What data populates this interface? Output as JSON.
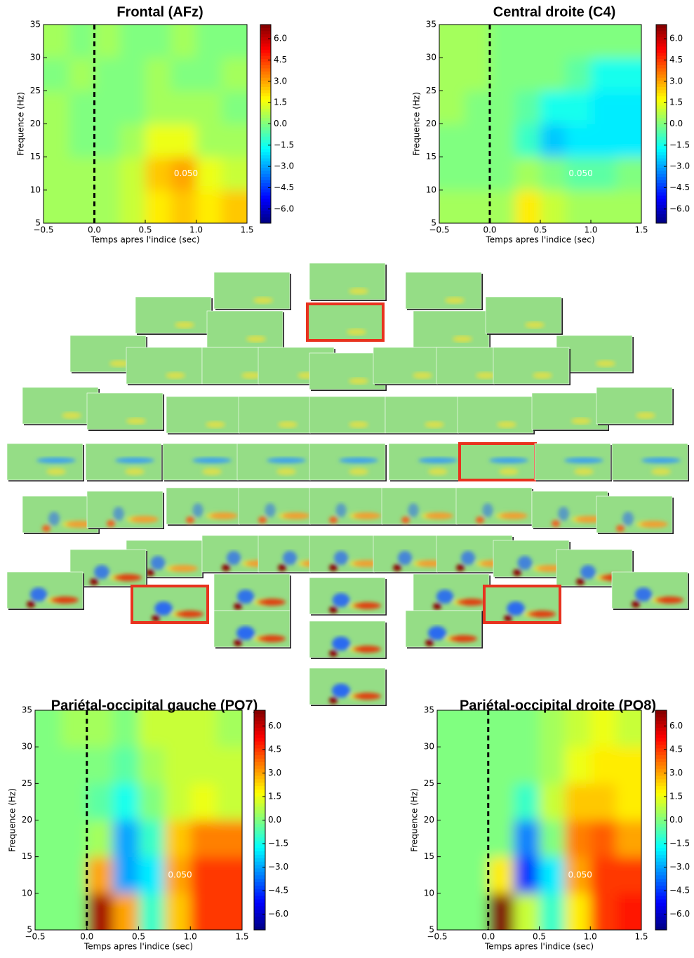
{
  "chart_data": [
    {
      "type": "heatmap",
      "title": "Frontal (AFz)",
      "x_label": "Temps apres l'indice (sec)",
      "y_label": "Frequence (Hz)",
      "xbins": [
        -0.5,
        -0.25,
        0,
        0.25,
        0.5,
        0.75,
        1,
        1.25,
        1.5
      ],
      "ybins": [
        5,
        10,
        15,
        20,
        25,
        30,
        35
      ],
      "z": [
        [
          0.5,
          0.5,
          0.5,
          1,
          2,
          2.5,
          2,
          2.5
        ],
        [
          0.5,
          0.5,
          0.5,
          1,
          2.5,
          3,
          1.5,
          1
        ],
        [
          0.5,
          0,
          0,
          0.5,
          1.5,
          1.5,
          0.5,
          0.5
        ],
        [
          0.5,
          0,
          0,
          0,
          0.5,
          0.5,
          0.5,
          0
        ],
        [
          0,
          0.5,
          0,
          0,
          0.5,
          0,
          0,
          0.5
        ],
        [
          0.5,
          0,
          0.5,
          0,
          0,
          0.5,
          0,
          0
        ]
      ],
      "xlim": [
        -0.5,
        1.5
      ],
      "ylim": [
        5,
        35
      ],
      "zlim": [
        -7,
        7
      ],
      "xticks": [
        {
          "value": -0.5,
          "label": "−0.5"
        },
        {
          "value": 0,
          "label": "0.0"
        },
        {
          "value": 0.5,
          "label": "0.5"
        },
        {
          "value": 1,
          "label": "1.0"
        },
        {
          "value": 1.5,
          "label": "1.5"
        }
      ],
      "yticks": [
        5,
        10,
        15,
        20,
        25,
        30,
        35
      ],
      "zticks": [
        {
          "value": 6,
          "label": "6.0"
        },
        {
          "value": 4.5,
          "label": "4.5"
        },
        {
          "value": 3,
          "label": "3.0"
        },
        {
          "value": 1.5,
          "label": "1.5"
        },
        {
          "value": 0,
          "label": "0.0"
        },
        {
          "value": -1.5,
          "label": "−1.5"
        },
        {
          "value": -3,
          "label": "−3.0"
        },
        {
          "value": -4.5,
          "label": "−4.5"
        },
        {
          "value": -6,
          "label": "−6.0"
        }
      ],
      "vline": 0,
      "contour_label": "0.050",
      "colormap": "jet"
    },
    {
      "type": "heatmap",
      "title": "Central droite (C4)",
      "x_label": "Temps apres l'indice (sec)",
      "y_label": "Frequence (Hz)",
      "xbins": [
        -0.5,
        -0.25,
        0,
        0.25,
        0.5,
        0.75,
        1,
        1.25,
        1.5
      ],
      "ybins": [
        5,
        10,
        15,
        20,
        25,
        30,
        35
      ],
      "z": [
        [
          0.5,
          0.5,
          0.5,
          2,
          1,
          0.5,
          0.5,
          0.5
        ],
        [
          0,
          0,
          0,
          0.5,
          0,
          -0.5,
          -0.5,
          0
        ],
        [
          0,
          0,
          0,
          -1,
          -2.5,
          -2,
          -2,
          -2
        ],
        [
          0.5,
          0,
          0,
          -0.5,
          -1.5,
          -1.5,
          -2,
          -2
        ],
        [
          0.5,
          0.5,
          0,
          0,
          0,
          -0.5,
          -1.5,
          -1.5
        ],
        [
          0.5,
          0.5,
          0,
          0,
          0,
          0,
          0,
          0
        ]
      ],
      "xlim": [
        -0.5,
        1.5
      ],
      "ylim": [
        5,
        35
      ],
      "zlim": [
        -7,
        7
      ],
      "xticks": [
        {
          "value": -0.5,
          "label": "−0.5"
        },
        {
          "value": 0,
          "label": "0.0"
        },
        {
          "value": 0.5,
          "label": "0.5"
        },
        {
          "value": 1,
          "label": "1.0"
        },
        {
          "value": 1.5,
          "label": "1.5"
        }
      ],
      "yticks": [
        5,
        10,
        15,
        20,
        25,
        30,
        35
      ],
      "zticks": [
        {
          "value": 6,
          "label": "6.0"
        },
        {
          "value": 4.5,
          "label": "4.5"
        },
        {
          "value": 3,
          "label": "3.0"
        },
        {
          "value": 1.5,
          "label": "1.5"
        },
        {
          "value": 0,
          "label": "0.0"
        },
        {
          "value": -1.5,
          "label": "−1.5"
        },
        {
          "value": -3,
          "label": "−3.0"
        },
        {
          "value": -4.5,
          "label": "−4.5"
        },
        {
          "value": -6,
          "label": "−6.0"
        }
      ],
      "vline": 0,
      "contour_label": "0.050",
      "colormap": "jet"
    },
    {
      "type": "heatmap",
      "title": "Pariétal-occipital gauche (PO7)",
      "x_label": "Temps apres l'indice (sec)",
      "y_label": "Frequence (Hz)",
      "xbins": [
        -0.5,
        -0.25,
        0,
        0.25,
        0.5,
        0.75,
        1,
        1.25,
        1.5
      ],
      "ybins": [
        5,
        10,
        15,
        20,
        25,
        30,
        35
      ],
      "z": [
        [
          0,
          0,
          6.5,
          3,
          -1,
          2.5,
          4.5,
          4.5
        ],
        [
          0,
          0,
          3,
          -3,
          -2,
          3,
          4.5,
          4.5
        ],
        [
          0,
          0,
          0.5,
          -3,
          -1,
          2.5,
          3.5,
          3.5
        ],
        [
          0,
          0,
          -0.5,
          -1.5,
          0,
          1,
          1.5,
          1
        ],
        [
          0,
          0,
          0,
          -0.5,
          0.5,
          1,
          1,
          1
        ],
        [
          0,
          0.5,
          0.5,
          0,
          1,
          1,
          1,
          0.5
        ]
      ],
      "xlim": [
        -0.5,
        1.5
      ],
      "ylim": [
        5,
        35
      ],
      "zlim": [
        -7,
        7
      ],
      "xticks": [
        {
          "value": -0.5,
          "label": "−0.5"
        },
        {
          "value": 0,
          "label": "0.0"
        },
        {
          "value": 0.5,
          "label": "0.5"
        },
        {
          "value": 1,
          "label": "1.0"
        },
        {
          "value": 1.5,
          "label": "1.5"
        }
      ],
      "yticks": [
        5,
        10,
        15,
        20,
        25,
        30,
        35
      ],
      "zticks": [
        {
          "value": 6,
          "label": "6.0"
        },
        {
          "value": 4.5,
          "label": "4.5"
        },
        {
          "value": 3,
          "label": "3.0"
        },
        {
          "value": 1.5,
          "label": "1.5"
        },
        {
          "value": 0,
          "label": "0.0"
        },
        {
          "value": -1.5,
          "label": "−1.5"
        },
        {
          "value": -3,
          "label": "−3.0"
        },
        {
          "value": -4.5,
          "label": "−4.5"
        },
        {
          "value": -6,
          "label": "−6.0"
        }
      ],
      "vline": 0,
      "contour_label": "0.050",
      "colormap": "jet"
    },
    {
      "type": "heatmap",
      "title": "Pariétal-occipital droite (PO8)",
      "x_label": "Temps apres l'indice (sec)",
      "y_label": "Frequence (Hz)",
      "xbins": [
        -0.5,
        -0.25,
        0,
        0.25,
        0.5,
        0.75,
        1,
        1.25,
        1.5
      ],
      "ybins": [
        5,
        10,
        15,
        20,
        25,
        30,
        35
      ],
      "z": [
        [
          0,
          0,
          7,
          1,
          -1,
          2,
          4.5,
          5
        ],
        [
          0,
          0,
          2,
          -4.5,
          -2,
          3,
          4.5,
          4.5
        ],
        [
          0,
          0,
          0,
          -3.5,
          0,
          3.5,
          4,
          3
        ],
        [
          0,
          0,
          0,
          -1,
          1,
          2.5,
          2.5,
          2
        ],
        [
          0,
          0,
          0,
          0,
          0.5,
          1.5,
          2,
          2
        ],
        [
          0,
          0,
          0,
          0,
          0.5,
          1,
          1.5,
          1
        ]
      ],
      "xlim": [
        -0.5,
        1.5
      ],
      "ylim": [
        5,
        35
      ],
      "zlim": [
        -7,
        7
      ],
      "xticks": [
        {
          "value": -0.5,
          "label": "−0.5"
        },
        {
          "value": 0,
          "label": "0.0"
        },
        {
          "value": 0.5,
          "label": "0.5"
        },
        {
          "value": 1,
          "label": "1.0"
        },
        {
          "value": 1.5,
          "label": "1.5"
        }
      ],
      "yticks": [
        5,
        10,
        15,
        20,
        25,
        30,
        35
      ],
      "zticks": [
        {
          "value": 6,
          "label": "6.0"
        },
        {
          "value": 4.5,
          "label": "4.5"
        },
        {
          "value": 3,
          "label": "3.0"
        },
        {
          "value": 1.5,
          "label": "1.5"
        },
        {
          "value": 0,
          "label": "0.0"
        },
        {
          "value": -1.5,
          "label": "−1.5"
        },
        {
          "value": -3,
          "label": "−3.0"
        },
        {
          "value": -4.5,
          "label": "−4.5"
        },
        {
          "value": -6,
          "label": "−6.0"
        }
      ],
      "vline": 0,
      "contour_label": "0.050",
      "colormap": "jet"
    }
  ]
}
